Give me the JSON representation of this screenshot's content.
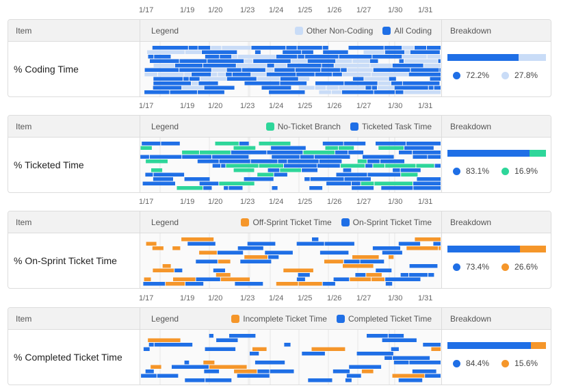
{
  "date_ticks": [
    "1/17",
    "1/19",
    "1/20",
    "1/23",
    "1/24",
    "1/25",
    "1/26",
    "1/27",
    "1/30",
    "1/31"
  ],
  "headers": {
    "item": "Item",
    "legend": "Legend",
    "breakdown": "Breakdown"
  },
  "colors": {
    "blue": "#1f6fe6",
    "lightblue": "#c9dcf7",
    "green": "#2ed69a",
    "orange": "#f5962a"
  },
  "panels": [
    {
      "label": "% Coding Time",
      "legend": [
        {
          "name": "Other Non-Coding",
          "color": "#c9dcf7"
        },
        {
          "name": "All Coding",
          "color": "#1f6fe6"
        }
      ],
      "breakdown": [
        {
          "value": "72.2%",
          "color": "#1f6fe6",
          "pct": 72.2
        },
        {
          "value": "27.8%",
          "color": "#c9dcf7",
          "pct": 27.8
        }
      ]
    },
    {
      "label": "% Ticketed Time",
      "legend": [
        {
          "name": "No-Ticket Branch",
          "color": "#2ed69a"
        },
        {
          "name": "Ticketed Task Time",
          "color": "#1f6fe6"
        }
      ],
      "breakdown": [
        {
          "value": "83.1%",
          "color": "#1f6fe6",
          "pct": 83.1
        },
        {
          "value": "16.9%",
          "color": "#2ed69a",
          "pct": 16.9
        }
      ]
    },
    {
      "label": "% On-Sprint Ticket Time",
      "legend": [
        {
          "name": "Off-Sprint Ticket Time",
          "color": "#f5962a"
        },
        {
          "name": "On-Sprint Ticket Time",
          "color": "#1f6fe6"
        }
      ],
      "breakdown": [
        {
          "value": "73.4%",
          "color": "#1f6fe6",
          "pct": 73.4
        },
        {
          "value": "26.6%",
          "color": "#f5962a",
          "pct": 26.6
        }
      ]
    },
    {
      "label": "% Completed Ticket Time",
      "legend": [
        {
          "name": "Incomplete Ticket Time",
          "color": "#f5962a"
        },
        {
          "name": "Completed Ticket Time",
          "color": "#1f6fe6"
        }
      ],
      "breakdown": [
        {
          "value": "84.4%",
          "color": "#1f6fe6",
          "pct": 84.4
        },
        {
          "value": "15.6%",
          "color": "#f5962a",
          "pct": 15.6
        }
      ]
    }
  ]
}
